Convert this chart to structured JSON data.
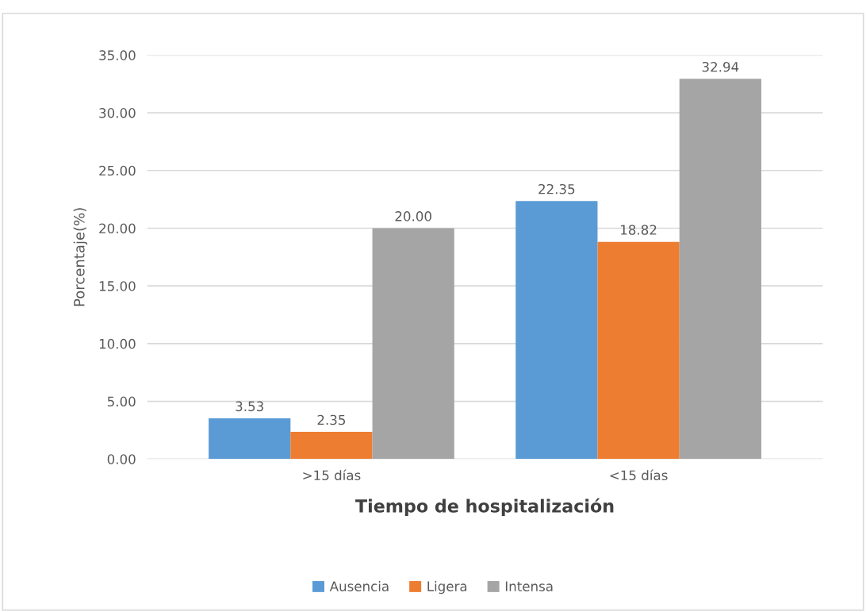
{
  "chart_data": {
    "type": "bar",
    "xlabel": "Tiempo de hospitalización",
    "ylabel": "Porcentaje(%)",
    "categories": [
      ">15 días",
      "<15 días"
    ],
    "series": [
      {
        "name": "Ausencia",
        "color": "#5b9bd5",
        "values": [
          3.53,
          22.35
        ],
        "value_labels": [
          "3.53",
          "22.35"
        ]
      },
      {
        "name": "Ligera",
        "color": "#ed7d31",
        "values": [
          2.35,
          18.82
        ],
        "value_labels": [
          "2.35",
          "18.82"
        ]
      },
      {
        "name": "Intensa",
        "color": "#a5a5a5",
        "values": [
          20.0,
          32.94
        ],
        "value_labels": [
          "20.00",
          "32.94"
        ]
      }
    ],
    "ylim": [
      0,
      35
    ],
    "yticks": [
      {
        "value": 0,
        "label": "0.00"
      },
      {
        "value": 5,
        "label": "5.00"
      },
      {
        "value": 10,
        "label": "10.00"
      },
      {
        "value": 15,
        "label": "15.00"
      },
      {
        "value": 20,
        "label": "20.00"
      },
      {
        "value": 25,
        "label": "25.00"
      },
      {
        "value": 30,
        "label": "30.00"
      },
      {
        "value": 35,
        "label": "35.00"
      }
    ],
    "grid": "y",
    "legend": "bottom"
  }
}
